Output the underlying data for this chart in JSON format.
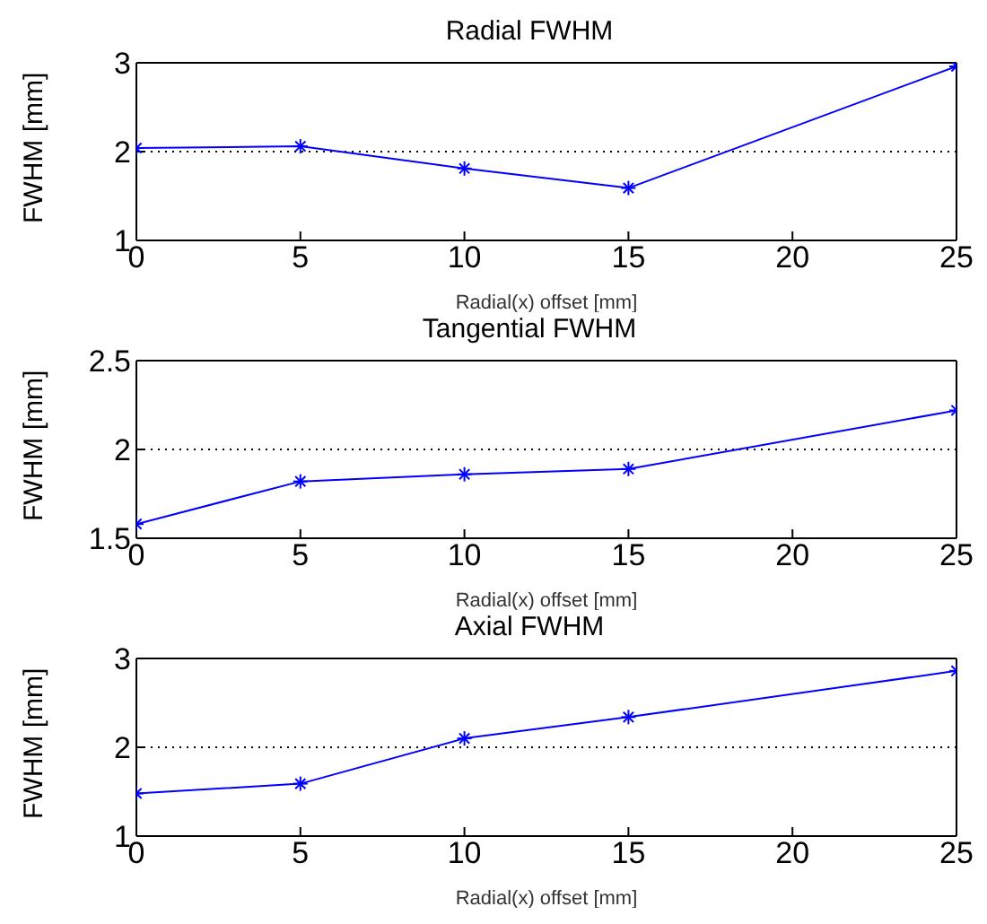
{
  "chart_data": [
    {
      "type": "line",
      "title": "Radial FWHM",
      "xlabel": "Radial(x) offset [mm]",
      "ylabel": "FWHM [mm]",
      "x": [
        0,
        5,
        10,
        15,
        25
      ],
      "series": [
        {
          "color": "#0000ff",
          "values": [
            2.04,
            2.06,
            1.81,
            1.59,
            2.96
          ]
        }
      ],
      "xlim": [
        0,
        25
      ],
      "xticks": [
        0,
        5,
        10,
        15,
        20,
        25
      ],
      "ylim": [
        1,
        3
      ],
      "yticks": [
        1,
        2,
        3
      ],
      "grid": "y",
      "marker": "cross",
      "line_style": "solid"
    },
    {
      "type": "line",
      "title": "Tangential FWHM",
      "xlabel": "Radial(x) offset [mm]",
      "ylabel": "FWHM [mm]",
      "x": [
        0,
        5,
        10,
        15,
        25
      ],
      "series": [
        {
          "color": "#0000ff",
          "values": [
            1.58,
            1.82,
            1.86,
            1.89,
            2.22
          ]
        }
      ],
      "xlim": [
        0,
        25
      ],
      "xticks": [
        0,
        5,
        10,
        15,
        20,
        25
      ],
      "ylim": [
        1.5,
        2.5
      ],
      "yticks": [
        1.5,
        2,
        2.5
      ],
      "grid": "y",
      "marker": "cross",
      "line_style": "solid"
    },
    {
      "type": "line",
      "title": "Axial FWHM",
      "xlabel": "Radial(x) offset [mm]",
      "ylabel": "FWHM [mm]",
      "x": [
        0,
        5,
        10,
        15,
        25
      ],
      "series": [
        {
          "color": "#0000ff",
          "values": [
            1.48,
            1.59,
            2.1,
            2.34,
            2.86
          ]
        }
      ],
      "xlim": [
        0,
        25
      ],
      "xticks": [
        0,
        5,
        10,
        15,
        20,
        25
      ],
      "ylim": [
        1,
        3
      ],
      "yticks": [
        1,
        2,
        3
      ],
      "grid": "y",
      "marker": "cross",
      "line_style": "solid"
    }
  ]
}
